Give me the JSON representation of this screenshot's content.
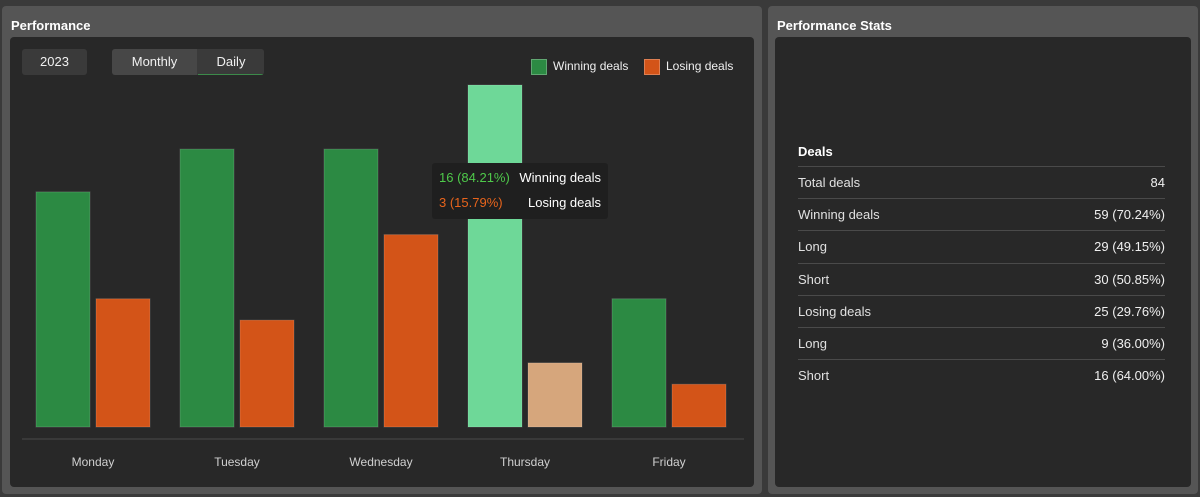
{
  "performance": {
    "title": "Performance",
    "year": "2023",
    "view_tabs": [
      "Monthly",
      "Daily"
    ],
    "active_view": "Daily",
    "legend": [
      {
        "label": "Winning deals",
        "color": "#2c8a43"
      },
      {
        "label": "Losing deals",
        "color": "#d35418"
      }
    ],
    "tooltip": {
      "win_value": "16 (84.21%)",
      "win_label": "Winning deals",
      "lose_value": "3 (15.79%)",
      "lose_label": "Losing deals"
    }
  },
  "chart_data": {
    "type": "bar",
    "categories": [
      "Monday",
      "Tuesday",
      "Wednesday",
      "Thursday",
      "Friday"
    ],
    "series": [
      {
        "name": "Winning deals",
        "values": [
          11,
          13,
          13,
          16,
          6
        ],
        "color": "#2c8a43",
        "highlight_color": "#6ed898"
      },
      {
        "name": "Losing deals",
        "values": [
          6,
          5,
          9,
          3,
          2
        ],
        "color": "#d35418",
        "highlight_color": "#d6a67c"
      }
    ],
    "highlighted_category": "Thursday",
    "ylim": [
      0,
      16
    ],
    "grid": false,
    "legend": "top-right"
  },
  "stats": {
    "title": "Performance Stats",
    "section": "Deals",
    "rows": [
      {
        "label": "Total deals",
        "value": "84"
      },
      {
        "label": "Winning deals",
        "value": "59 (70.24%)"
      },
      {
        "label": "Long",
        "value": "29 (49.15%)"
      },
      {
        "label": "Short",
        "value": "30 (50.85%)"
      },
      {
        "label": "Losing deals",
        "value": "25 (29.76%)"
      },
      {
        "label": "Long",
        "value": "9 (36.00%)"
      },
      {
        "label": "Short",
        "value": "16 (64.00%)"
      }
    ]
  },
  "colors": {
    "tooltip_win": "#4ec94a",
    "tooltip_lose": "#e8641c"
  }
}
